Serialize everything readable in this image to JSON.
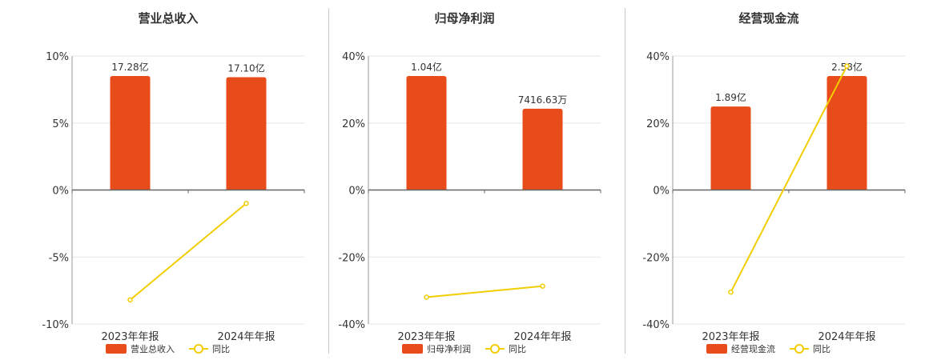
{
  "colors": {
    "bar": "#e84c1b",
    "line": "#f2cd00",
    "grid": "#e6e6e6",
    "axis": "#666666",
    "text": "#333333"
  },
  "chart_data": [
    {
      "type": "bar+line",
      "title": "营业总收入",
      "categories": [
        "2023年年报",
        "2024年年报"
      ],
      "bar_values": [
        17.28,
        17.1
      ],
      "bar_value_unit": "亿",
      "bar_labels": [
        "17.28亿",
        "17.10亿"
      ],
      "line_values": [
        -8.2,
        -1.0
      ],
      "y_ticks": [
        "10%",
        "5%",
        "0%",
        "-5%",
        "-10%"
      ],
      "ylim": [
        -10,
        10
      ],
      "grid": true,
      "legend": [
        {
          "label": "营业总收入",
          "kind": "bar"
        },
        {
          "label": "同比",
          "kind": "line"
        }
      ],
      "legend_position": "bottom"
    },
    {
      "type": "bar+line",
      "title": "归母净利润",
      "categories": [
        "2023年年报",
        "2024年年报"
      ],
      "bar_values": [
        1.04,
        0.741663
      ],
      "bar_value_unit": "亿",
      "bar_labels": [
        "1.04亿",
        "7416.63万"
      ],
      "line_values": [
        -32.0,
        -28.7
      ],
      "y_ticks": [
        "40%",
        "20%",
        "0%",
        "-20%",
        "-40%"
      ],
      "ylim": [
        -40,
        40
      ],
      "grid": true,
      "legend": [
        {
          "label": "归母净利润",
          "kind": "bar"
        },
        {
          "label": "同比",
          "kind": "line"
        }
      ],
      "legend_position": "bottom"
    },
    {
      "type": "bar+line",
      "title": "经营现金流",
      "categories": [
        "2023年年报",
        "2024年年报"
      ],
      "bar_values": [
        1.89,
        2.58
      ],
      "bar_value_unit": "亿",
      "bar_labels": [
        "1.89亿",
        "2.58亿"
      ],
      "line_values": [
        -30.5,
        37.0
      ],
      "y_ticks": [
        "40%",
        "20%",
        "0%",
        "-20%",
        "-40%"
      ],
      "ylim": [
        -40,
        40
      ],
      "grid": true,
      "legend": [
        {
          "label": "经营现金流",
          "kind": "bar"
        },
        {
          "label": "同比",
          "kind": "line"
        }
      ],
      "legend_position": "bottom"
    }
  ]
}
